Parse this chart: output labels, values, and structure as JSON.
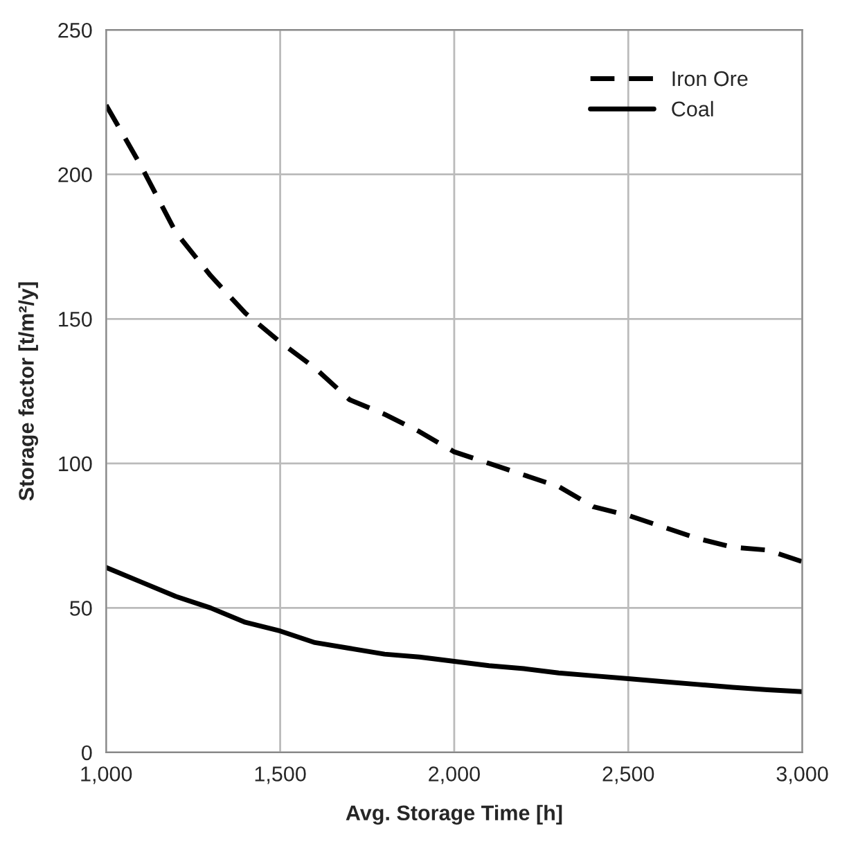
{
  "chart_data": {
    "type": "line",
    "xlabel": "Avg. Storage Time [h]",
    "ylabel": "Storage factor [t/m²/y]",
    "x": [
      1000,
      1100,
      1200,
      1300,
      1400,
      1500,
      1600,
      1700,
      1800,
      1900,
      2000,
      2100,
      2200,
      2300,
      2400,
      2500,
      2600,
      2700,
      2800,
      2900,
      3000
    ],
    "series": [
      {
        "name": "Iron Ore",
        "color": "#000000",
        "line_style": "dashed",
        "values": [
          224,
          203,
          180,
          165,
          152,
          142,
          133,
          122,
          117,
          111,
          104,
          100,
          96,
          92,
          85,
          82,
          78,
          74,
          71,
          70,
          66
        ]
      },
      {
        "name": "Coal",
        "color": "#000000",
        "line_style": "solid",
        "values": [
          64,
          59,
          54,
          50,
          45,
          42,
          38,
          36,
          34,
          33,
          31.5,
          30,
          29,
          27.5,
          26.5,
          25.5,
          24.5,
          23.5,
          22.5,
          21.7,
          21
        ]
      }
    ],
    "xlim": [
      1000,
      3000
    ],
    "xticks": [
      {
        "value": 1000,
        "label": "1,000"
      },
      {
        "value": 1500,
        "label": "1,500"
      },
      {
        "value": 2000,
        "label": "2,000"
      },
      {
        "value": 2500,
        "label": "2,500"
      },
      {
        "value": 3000,
        "label": "3,000"
      }
    ],
    "ylim": [
      0,
      250
    ],
    "yticks": [
      0,
      50,
      100,
      150,
      200,
      250
    ],
    "grid": true,
    "legend": "top right",
    "marker": "none"
  }
}
